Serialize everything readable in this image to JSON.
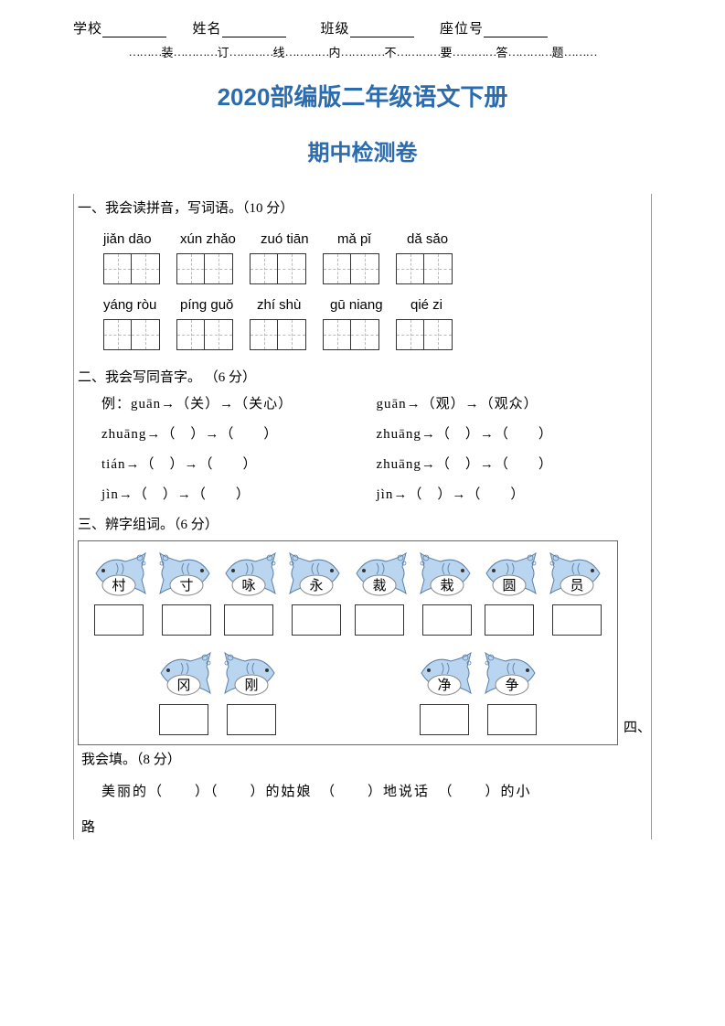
{
  "colors": {
    "title_color": "#2b6cb0",
    "border_color": "#666666",
    "text_color": "#000000",
    "fish_body": "#b9d5ef",
    "fish_stroke": "#5a7fa8",
    "bubble_fill": "#ffffff"
  },
  "header": {
    "school_label": "学校",
    "name_label": "姓名",
    "class_label": "班级",
    "seat_label": "座位号"
  },
  "dotted": {
    "chars": [
      "装",
      "订",
      "线",
      "内",
      "不",
      "要",
      "答",
      "题"
    ]
  },
  "titles": {
    "line1": "2020部编版二年级语文下册",
    "line2": "期中检测卷"
  },
  "q1": {
    "title": "一、我会读拼音，写词语。（10 分）",
    "row1_pinyin": [
      "jiǎn dāo",
      "xún zhǎo",
      "zuó tiān",
      "mǎ   pǐ",
      "dǎ sǎo"
    ],
    "row1_widths": [
      84,
      88,
      84,
      76,
      70
    ],
    "row2_pinyin": [
      "yáng ròu",
      "píng guǒ",
      "zhí shù",
      "gū niang",
      "qié zi"
    ],
    "row2_widths": [
      84,
      84,
      80,
      88,
      70
    ]
  },
  "q2": {
    "title": "二、我会写同音字。 （6 分）",
    "rows": [
      {
        "left": "例：guān→（关）→（关心）",
        "right": "guān→（观）→（观众）"
      },
      {
        "left": "zhuāng→（　）→（　　）",
        "right": "zhuāng→（　）→（　　）"
      },
      {
        "left": "tián→（　）→（　　）",
        "right": "zhuāng→（　）→（　　）"
      },
      {
        "left": "jìn→（　）→（　　）",
        "right": "jìn→（　）→（　　）"
      }
    ]
  },
  "q3": {
    "title": "三、辨字组词。（6 分）",
    "groups": [
      [
        "村",
        "寸"
      ],
      [
        "咏",
        "永"
      ],
      [
        "裁",
        "栽"
      ],
      [
        "圆",
        "员"
      ],
      [
        "冈",
        "刚"
      ],
      [
        "净",
        "争"
      ]
    ]
  },
  "q4": {
    "inline_prefix": "四、",
    "title": "我会填。（8 分）",
    "line1": "美丽的（　　）（　　）的姑娘　（　　）地说话　（　　）的小",
    "line2": "路"
  }
}
